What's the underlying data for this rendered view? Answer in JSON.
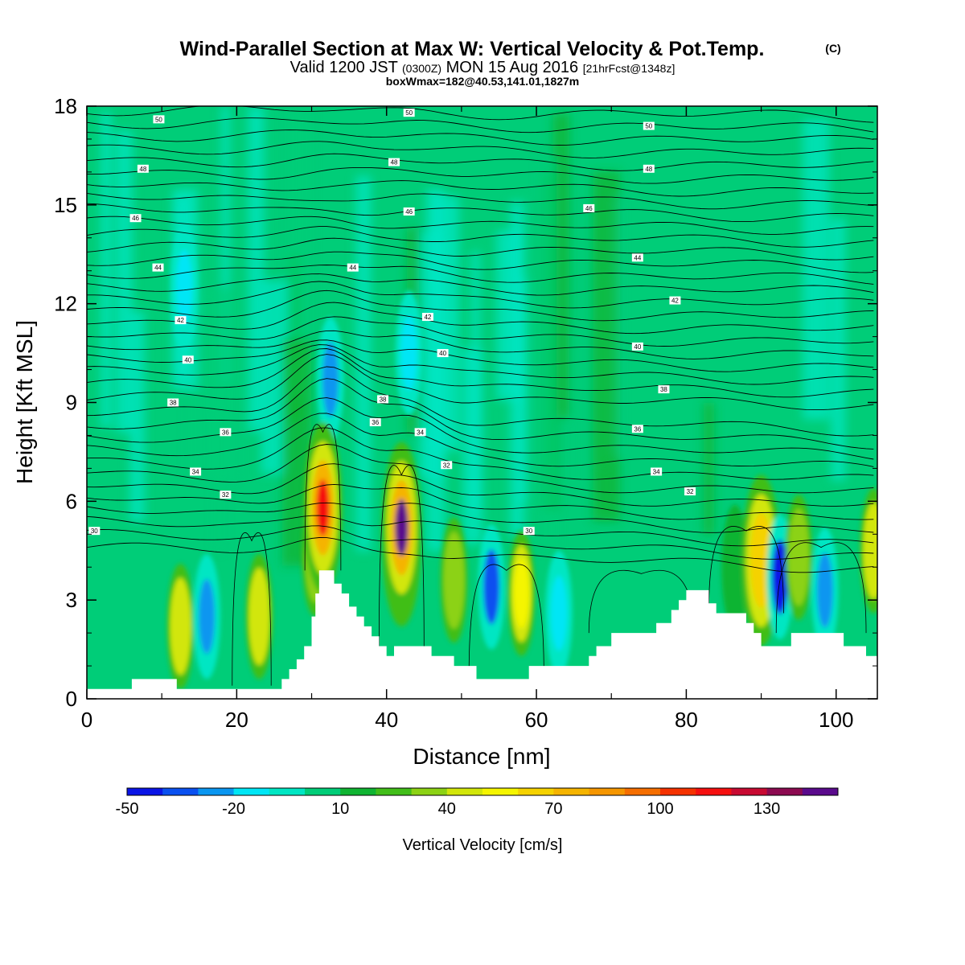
{
  "header": {
    "title": "Wind-Parallel Section at Max W: Vertical Velocity & Pot.Temp.",
    "copyright_mark": "(C)",
    "subtitle_main": "Valid 1200 JST",
    "subtitle_zulu": "(0300Z)",
    "subtitle_date": "MON 15 Aug 2016",
    "subtitle_fcst": "[21hrFcst@1348z]",
    "box_info": "boxWmax=182@40.53,141.01,1827m"
  },
  "chart_data": {
    "type": "heatmap",
    "xlabel": "Distance [nm]",
    "ylabel": "Height [Kft MSL]",
    "xlim": [
      0,
      105.5
    ],
    "ylim": [
      0,
      18
    ],
    "x_ticks": [
      "0",
      "20",
      "40",
      "60",
      "80",
      "100"
    ],
    "y_ticks": [
      "0",
      "3",
      "6",
      "9",
      "12",
      "15",
      "18"
    ],
    "colorbar": {
      "label": "Vertical Velocity [cm/s]",
      "tick_labels": [
        "-50",
        "-20",
        "10",
        "40",
        "70",
        "100",
        "130"
      ],
      "levels": [
        -50,
        -40,
        -30,
        -20,
        -10,
        0,
        10,
        20,
        30,
        40,
        50,
        60,
        70,
        80,
        90,
        100,
        110,
        120,
        130,
        140,
        150
      ],
      "colors": [
        "#0a14e6",
        "#0a50f0",
        "#0a96f0",
        "#00e6f5",
        "#00e6c3",
        "#00cd78",
        "#0fb432",
        "#41be19",
        "#8cd214",
        "#d2e60a",
        "#f5f500",
        "#f5d200",
        "#f5b400",
        "#f59600",
        "#f56e00",
        "#f53200",
        "#f50f0f",
        "#c80a32",
        "#8c0a50",
        "#5a0a8c"
      ]
    },
    "terrain": [
      [
        0,
        0.3
      ],
      [
        6,
        0.3
      ],
      [
        6,
        0.6
      ],
      [
        12,
        0.6
      ],
      [
        12,
        0.3
      ],
      [
        26,
        0.3
      ],
      [
        26,
        0.6
      ],
      [
        27,
        0.6
      ],
      [
        27,
        0.9
      ],
      [
        28,
        0.9
      ],
      [
        28,
        1.2
      ],
      [
        29,
        1.2
      ],
      [
        29,
        1.6
      ],
      [
        30,
        1.6
      ],
      [
        30,
        2.5
      ],
      [
        30.5,
        2.5
      ],
      [
        30.5,
        3.2
      ],
      [
        31,
        3.2
      ],
      [
        31,
        3.9
      ],
      [
        33,
        3.9
      ],
      [
        33,
        3.5
      ],
      [
        34,
        3.5
      ],
      [
        34,
        3.2
      ],
      [
        35,
        3.2
      ],
      [
        35,
        2.8
      ],
      [
        36,
        2.8
      ],
      [
        36,
        2.5
      ],
      [
        37,
        2.5
      ],
      [
        37,
        2.2
      ],
      [
        38,
        2.2
      ],
      [
        38,
        1.9
      ],
      [
        39,
        1.9
      ],
      [
        39,
        1.6
      ],
      [
        40,
        1.6
      ],
      [
        40,
        1.3
      ],
      [
        41,
        1.3
      ],
      [
        41,
        1.6
      ],
      [
        46,
        1.6
      ],
      [
        46,
        1.3
      ],
      [
        49,
        1.3
      ],
      [
        49,
        1.0
      ],
      [
        52,
        1.0
      ],
      [
        52,
        0.6
      ],
      [
        59,
        0.6
      ],
      [
        59,
        1.0
      ],
      [
        67,
        1.0
      ],
      [
        67,
        1.3
      ],
      [
        68,
        1.3
      ],
      [
        68,
        1.6
      ],
      [
        70,
        1.6
      ],
      [
        70,
        2.0
      ],
      [
        76,
        2.0
      ],
      [
        76,
        2.3
      ],
      [
        78,
        2.3
      ],
      [
        78,
        2.7
      ],
      [
        79,
        2.7
      ],
      [
        79,
        3.0
      ],
      [
        80,
        3.0
      ],
      [
        80,
        3.3
      ],
      [
        83,
        3.3
      ],
      [
        83,
        2.9
      ],
      [
        84,
        2.9
      ],
      [
        84,
        2.6
      ],
      [
        88,
        2.6
      ],
      [
        88,
        2.3
      ],
      [
        89,
        2.3
      ],
      [
        89,
        2.0
      ],
      [
        90,
        2.0
      ],
      [
        90,
        1.6
      ],
      [
        94,
        1.6
      ],
      [
        94,
        2.0
      ],
      [
        101,
        2.0
      ],
      [
        101,
        1.6
      ],
      [
        104,
        1.6
      ],
      [
        104,
        1.3
      ],
      [
        105.5,
        1.3
      ]
    ],
    "cells": [
      {
        "x": 32.5,
        "y": 9.7,
        "value": -25
      },
      {
        "x": 30.5,
        "y": 4.4,
        "value": 30
      },
      {
        "x": 31.5,
        "y": 5.8,
        "value": 115
      },
      {
        "x": 42.0,
        "y": 4.8,
        "value": 110
      },
      {
        "x": 42.0,
        "y": 5.2,
        "value": 145
      },
      {
        "x": 49.0,
        "y": 3.6,
        "value": 30
      },
      {
        "x": 54.0,
        "y": 3.4,
        "value": -35
      },
      {
        "x": 58.0,
        "y": 3.2,
        "value": 50
      },
      {
        "x": 63.0,
        "y": 2.6,
        "value": -15
      },
      {
        "x": 23.0,
        "y": 2.5,
        "value": 45
      },
      {
        "x": 12.5,
        "y": 2.2,
        "value": 45
      },
      {
        "x": 16.0,
        "y": 2.5,
        "value": -25
      },
      {
        "x": 86.5,
        "y": 4.0,
        "value": 15
      },
      {
        "x": 90.0,
        "y": 4.2,
        "value": 60
      },
      {
        "x": 92.5,
        "y": 3.7,
        "value": -45
      },
      {
        "x": 95.0,
        "y": 4.3,
        "value": 35
      },
      {
        "x": 98.5,
        "y": 3.3,
        "value": -25
      },
      {
        "x": 105.0,
        "y": 4.5,
        "value": 45
      },
      {
        "x": 43.0,
        "y": 10.5,
        "value": -15
      },
      {
        "x": 13.0,
        "y": 12.5,
        "value": -15
      }
    ],
    "isentrope_labels": [
      {
        "x": 9.6,
        "y": 17.6,
        "text": "50"
      },
      {
        "x": 43.0,
        "y": 17.8,
        "text": "50"
      },
      {
        "x": 75.0,
        "y": 17.4,
        "text": "50"
      },
      {
        "x": 7.5,
        "y": 16.1,
        "text": "48"
      },
      {
        "x": 41.0,
        "y": 16.3,
        "text": "48"
      },
      {
        "x": 75.0,
        "y": 16.1,
        "text": "48"
      },
      {
        "x": 6.5,
        "y": 14.6,
        "text": "46"
      },
      {
        "x": 43.0,
        "y": 14.8,
        "text": "46"
      },
      {
        "x": 67.0,
        "y": 14.9,
        "text": "46"
      },
      {
        "x": 9.5,
        "y": 13.1,
        "text": "44"
      },
      {
        "x": 35.5,
        "y": 13.1,
        "text": "44"
      },
      {
        "x": 73.5,
        "y": 13.4,
        "text": "44"
      },
      {
        "x": 12.5,
        "y": 11.5,
        "text": "42"
      },
      {
        "x": 45.5,
        "y": 11.6,
        "text": "42"
      },
      {
        "x": 78.5,
        "y": 12.1,
        "text": "42"
      },
      {
        "x": 13.5,
        "y": 10.3,
        "text": "40"
      },
      {
        "x": 47.5,
        "y": 10.5,
        "text": "40"
      },
      {
        "x": 73.5,
        "y": 10.7,
        "text": "40"
      },
      {
        "x": 11.5,
        "y": 9.0,
        "text": "38"
      },
      {
        "x": 39.5,
        "y": 9.1,
        "text": "38"
      },
      {
        "x": 77.0,
        "y": 9.4,
        "text": "38"
      },
      {
        "x": 18.5,
        "y": 8.1,
        "text": "36"
      },
      {
        "x": 38.5,
        "y": 8.4,
        "text": "36"
      },
      {
        "x": 73.5,
        "y": 8.2,
        "text": "36"
      },
      {
        "x": 14.5,
        "y": 6.9,
        "text": "34"
      },
      {
        "x": 44.5,
        "y": 8.1,
        "text": "34"
      },
      {
        "x": 76.0,
        "y": 6.9,
        "text": "34"
      },
      {
        "x": 18.5,
        "y": 6.2,
        "text": "32"
      },
      {
        "x": 48.0,
        "y": 7.1,
        "text": "32"
      },
      {
        "x": 80.5,
        "y": 6.3,
        "text": "32"
      },
      {
        "x": 1.0,
        "y": 5.1,
        "text": "30"
      },
      {
        "x": 59.0,
        "y": 5.1,
        "text": "30"
      }
    ]
  }
}
